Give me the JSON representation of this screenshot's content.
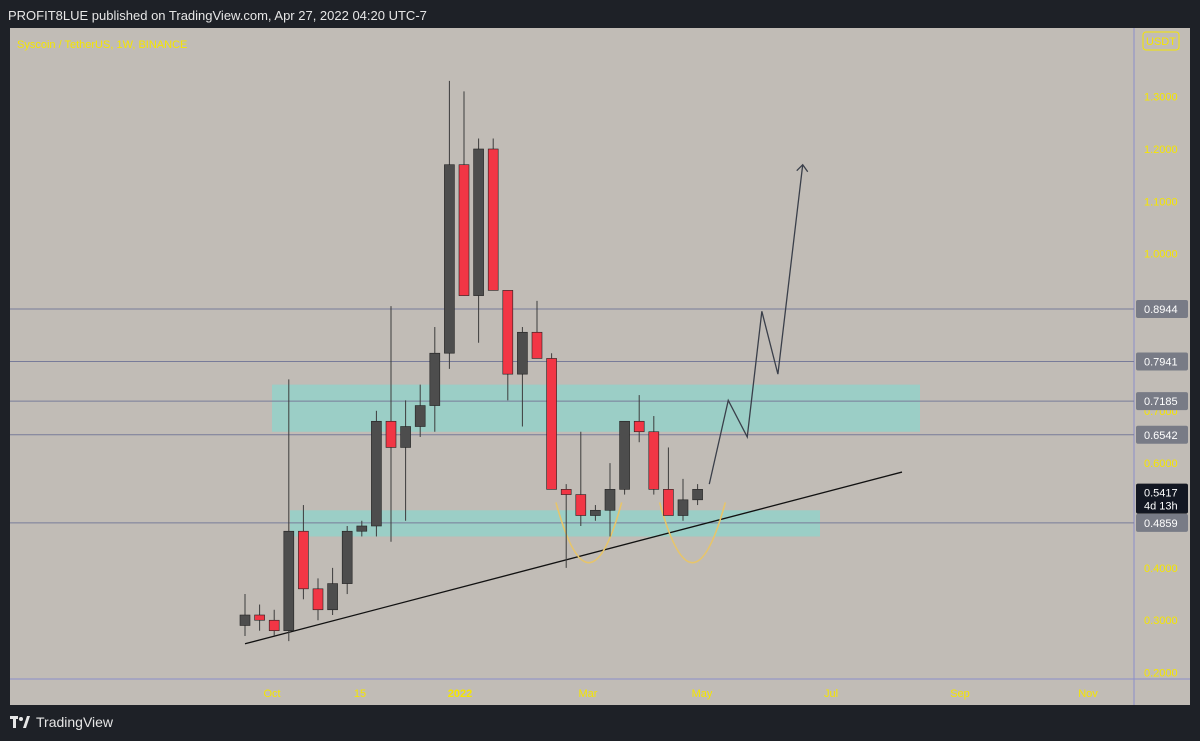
{
  "header": {
    "published_text": "PROFIT8LUE published on TradingView.com, Apr 27, 2022 04:20 UTC-7"
  },
  "footer": {
    "brand": "TradingView"
  },
  "colors": {
    "background": "#c1bcb6",
    "frame": "#1e2127",
    "up_candle": "#4d4d4d",
    "down_candle": "#f23645",
    "zone": "#8ed4cb",
    "axis_text": "#f5e600",
    "wick": "#3c3c3c",
    "trendline": "#111111",
    "cup": "#e7c56a",
    "projection": "#3a3f4a"
  },
  "chart_data": {
    "type": "candlestick",
    "title": "Syscoin / TetherUS, 1W, BINANCE",
    "currency_label": "USDT",
    "y_ticks": [
      "1.3000",
      "1.2000",
      "1.1000",
      "1.0000",
      "0.7000",
      "0.6000",
      "0.4000",
      "0.3000",
      "0.2000"
    ],
    "ylim": [
      0.2,
      1.34
    ],
    "x_labels": [
      "Oct",
      "15",
      "2022",
      "Mar",
      "May",
      "Jul",
      "Sep",
      "Nov"
    ],
    "price_levels": [
      "0.8944",
      "0.7941",
      "0.7185",
      "0.6542",
      "0.4859"
    ],
    "current_price": {
      "value": "0.5417",
      "countdown": "4d 13h"
    },
    "zones": [
      {
        "low": 0.66,
        "high": 0.75
      },
      {
        "low": 0.46,
        "high": 0.51
      }
    ],
    "candles": [
      {
        "o": 0.29,
        "h": 0.35,
        "l": 0.27,
        "c": 0.31
      },
      {
        "o": 0.31,
        "h": 0.33,
        "l": 0.28,
        "c": 0.3
      },
      {
        "o": 0.3,
        "h": 0.32,
        "l": 0.27,
        "c": 0.28
      },
      {
        "o": 0.28,
        "h": 0.76,
        "l": 0.26,
        "c": 0.47
      },
      {
        "o": 0.47,
        "h": 0.52,
        "l": 0.34,
        "c": 0.36
      },
      {
        "o": 0.36,
        "h": 0.38,
        "l": 0.3,
        "c": 0.32
      },
      {
        "o": 0.32,
        "h": 0.4,
        "l": 0.31,
        "c": 0.37
      },
      {
        "o": 0.37,
        "h": 0.48,
        "l": 0.35,
        "c": 0.47
      },
      {
        "o": 0.47,
        "h": 0.49,
        "l": 0.46,
        "c": 0.48
      },
      {
        "o": 0.48,
        "h": 0.7,
        "l": 0.46,
        "c": 0.68
      },
      {
        "o": 0.68,
        "h": 0.9,
        "l": 0.45,
        "c": 0.63
      },
      {
        "o": 0.63,
        "h": 0.72,
        "l": 0.49,
        "c": 0.67
      },
      {
        "o": 0.67,
        "h": 0.75,
        "l": 0.65,
        "c": 0.71
      },
      {
        "o": 0.71,
        "h": 0.86,
        "l": 0.66,
        "c": 0.81
      },
      {
        "o": 0.81,
        "h": 1.33,
        "l": 0.78,
        "c": 1.17
      },
      {
        "o": 1.17,
        "h": 1.31,
        "l": 0.92,
        "c": 0.92
      },
      {
        "o": 0.92,
        "h": 1.22,
        "l": 0.83,
        "c": 1.2
      },
      {
        "o": 1.2,
        "h": 1.22,
        "l": 0.93,
        "c": 0.93
      },
      {
        "o": 0.93,
        "h": 0.93,
        "l": 0.72,
        "c": 0.77
      },
      {
        "o": 0.77,
        "h": 0.86,
        "l": 0.67,
        "c": 0.85
      },
      {
        "o": 0.85,
        "h": 0.91,
        "l": 0.8,
        "c": 0.8
      },
      {
        "o": 0.8,
        "h": 0.81,
        "l": 0.55,
        "c": 0.55
      },
      {
        "o": 0.55,
        "h": 0.56,
        "l": 0.4,
        "c": 0.54
      },
      {
        "o": 0.54,
        "h": 0.66,
        "l": 0.48,
        "c": 0.5
      },
      {
        "o": 0.5,
        "h": 0.52,
        "l": 0.49,
        "c": 0.51
      },
      {
        "o": 0.51,
        "h": 0.6,
        "l": 0.46,
        "c": 0.55
      },
      {
        "o": 0.55,
        "h": 0.68,
        "l": 0.54,
        "c": 0.68
      },
      {
        "o": 0.68,
        "h": 0.73,
        "l": 0.64,
        "c": 0.66
      },
      {
        "o": 0.66,
        "h": 0.69,
        "l": 0.54,
        "c": 0.55
      },
      {
        "o": 0.55,
        "h": 0.63,
        "l": 0.5,
        "c": 0.5
      },
      {
        "o": 0.5,
        "h": 0.57,
        "l": 0.49,
        "c": 0.53
      },
      {
        "o": 0.53,
        "h": 0.56,
        "l": 0.52,
        "c": 0.55
      }
    ],
    "trendline": {
      "from": {
        "bar": 0,
        "price": 0.255
      },
      "to": {
        "bar": 45,
        "price": 0.583
      }
    },
    "cups": [
      {
        "left_bar": 21.3,
        "right_bar": 25.8,
        "top_price": 0.525,
        "bottom_price": 0.41
      },
      {
        "left_bar": 28.4,
        "right_bar": 32.9,
        "top_price": 0.525,
        "bottom_price": 0.41
      }
    ],
    "projection_path": [
      {
        "bar": 31.8,
        "price": 0.56
      },
      {
        "bar": 33.1,
        "price": 0.72
      },
      {
        "bar": 34.4,
        "price": 0.65
      },
      {
        "bar": 35.4,
        "price": 0.89
      },
      {
        "bar": 36.5,
        "price": 0.77
      },
      {
        "bar": 38.2,
        "price": 1.17
      }
    ]
  }
}
